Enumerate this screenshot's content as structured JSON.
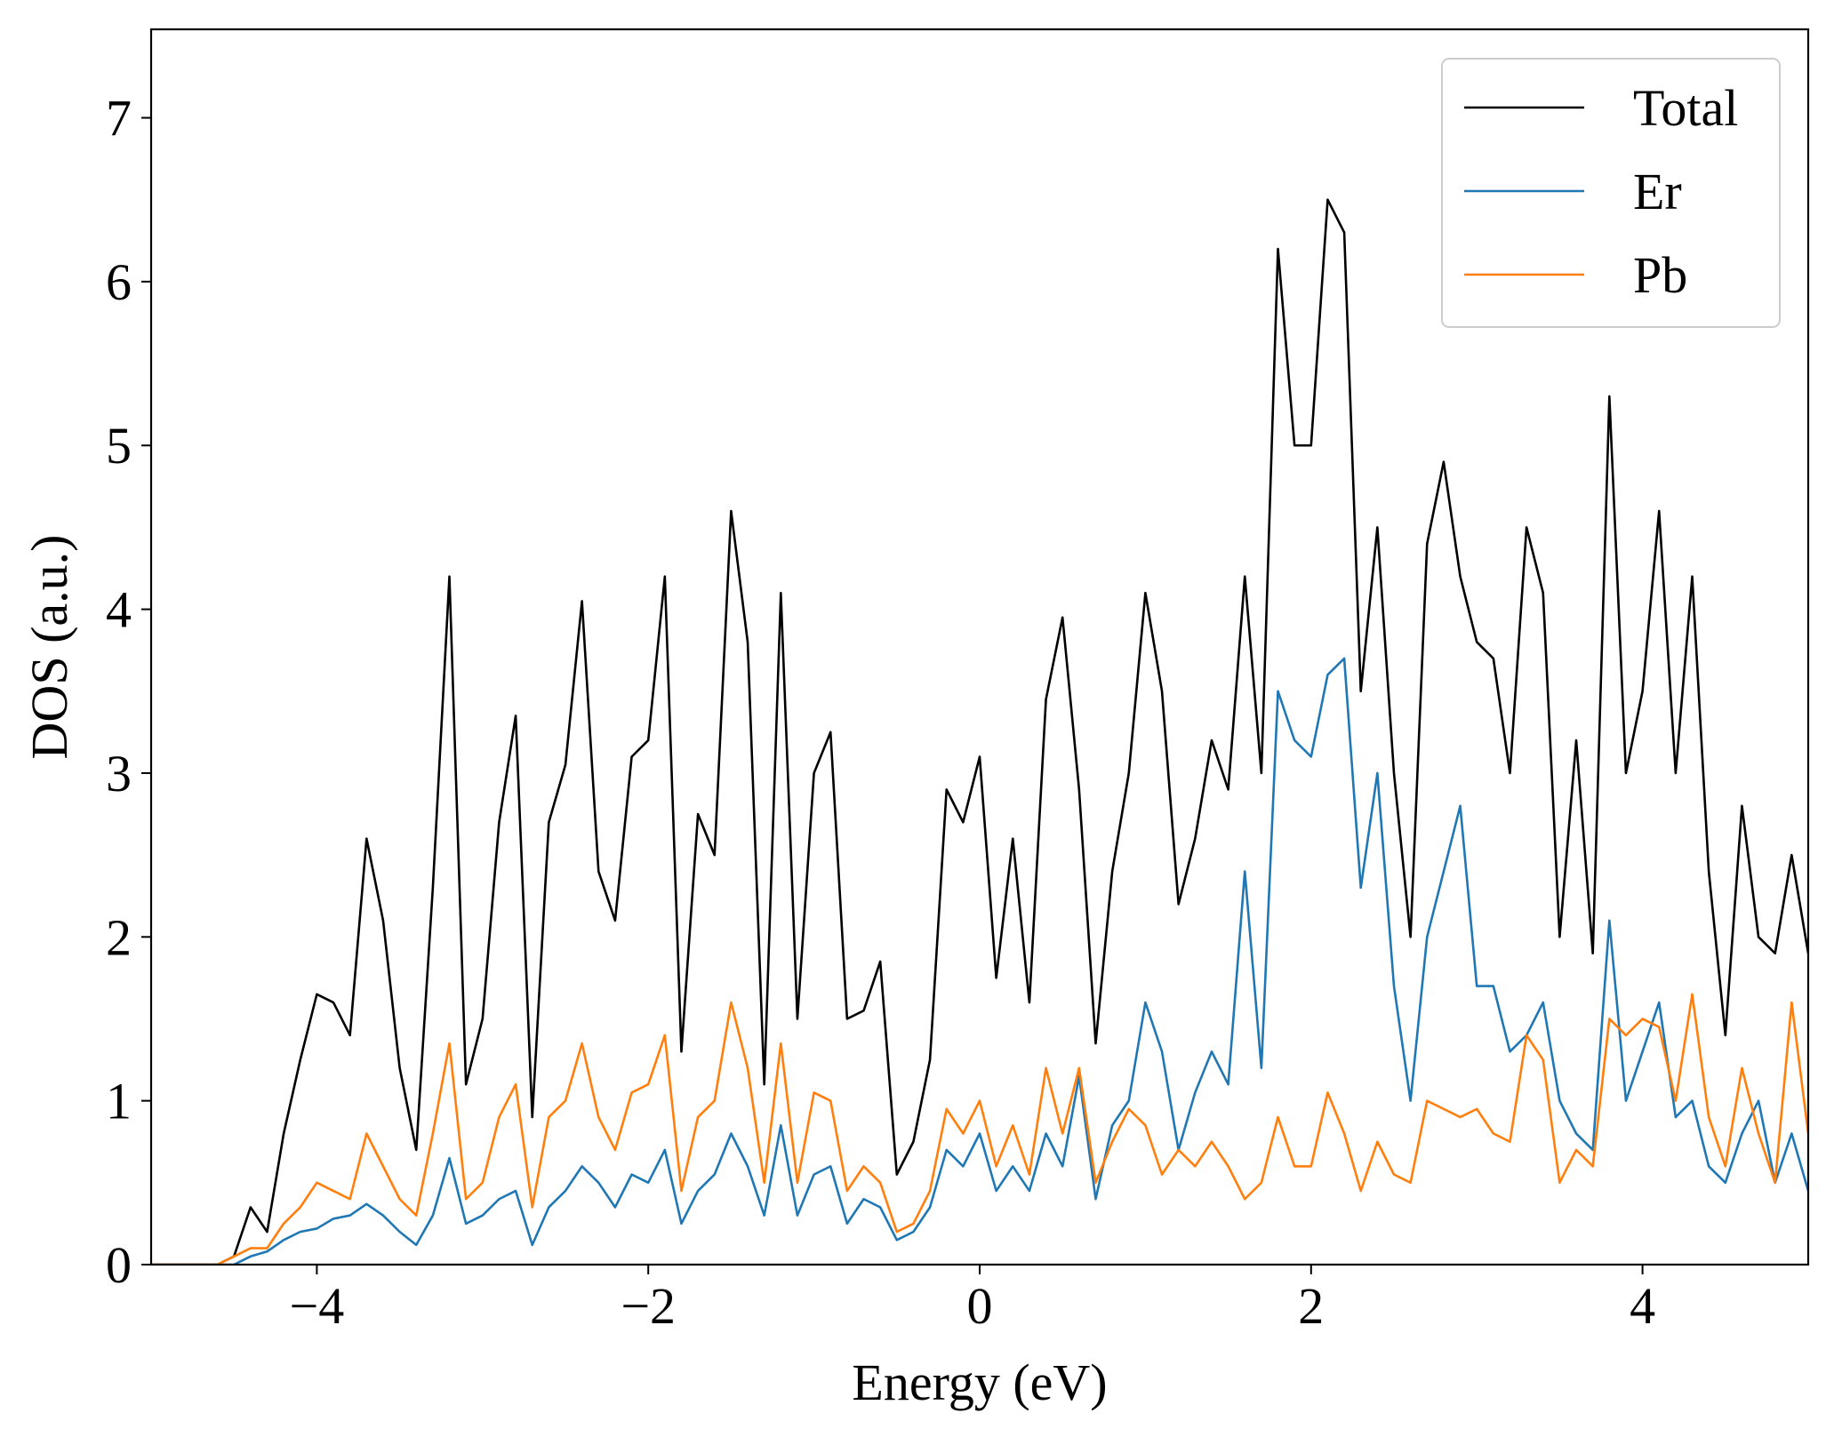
{
  "chart_data": {
    "type": "line",
    "xlabel": "Energy (eV)",
    "ylabel": "DOS (a.u.)",
    "x": [
      -5.0,
      -4.9,
      -4.8,
      -4.7,
      -4.6,
      -4.5,
      -4.4,
      -4.3,
      -4.2,
      -4.1,
      -4.0,
      -3.9,
      -3.8,
      -3.7,
      -3.6,
      -3.5,
      -3.4,
      -3.3,
      -3.2,
      -3.1,
      -3.0,
      -2.9,
      -2.8,
      -2.7,
      -2.6,
      -2.5,
      -2.4,
      -2.3,
      -2.2,
      -2.1,
      -2.0,
      -1.9,
      -1.8,
      -1.7,
      -1.6,
      -1.5,
      -1.4,
      -1.3,
      -1.2,
      -1.1,
      -1.0,
      -0.9,
      -0.8,
      -0.7,
      -0.6,
      -0.5,
      -0.4,
      -0.3,
      -0.2,
      -0.1,
      0.0,
      0.1,
      0.2,
      0.3,
      0.4,
      0.5,
      0.6,
      0.7,
      0.8,
      0.9,
      1.0,
      1.1,
      1.2,
      1.3,
      1.4,
      1.5,
      1.6,
      1.7,
      1.8,
      1.9,
      2.0,
      2.1,
      2.2,
      2.3,
      2.4,
      2.5,
      2.6,
      2.7,
      2.8,
      2.9,
      3.0,
      3.1,
      3.2,
      3.3,
      3.4,
      3.5,
      3.6,
      3.7,
      3.8,
      3.9,
      4.0,
      4.1,
      4.2,
      4.3,
      4.4,
      4.5,
      4.6,
      4.7,
      4.8,
      4.9,
      5.0
    ],
    "series": [
      {
        "name": "Total",
        "color": "#000000",
        "values": [
          0,
          0,
          0,
          0,
          0,
          0.05,
          0.35,
          0.2,
          0.8,
          1.25,
          1.65,
          1.6,
          1.4,
          2.6,
          2.1,
          1.2,
          0.7,
          2.3,
          4.2,
          1.1,
          1.5,
          2.7,
          3.35,
          0.9,
          2.7,
          3.05,
          4.05,
          2.4,
          2.1,
          3.1,
          3.2,
          4.2,
          1.3,
          2.75,
          2.5,
          4.6,
          3.8,
          1.1,
          4.1,
          1.5,
          3.0,
          3.25,
          1.5,
          1.55,
          1.85,
          0.55,
          0.75,
          1.25,
          2.9,
          2.7,
          3.1,
          1.75,
          2.6,
          1.6,
          3.45,
          3.95,
          2.9,
          1.35,
          2.4,
          3.0,
          4.1,
          3.5,
          2.2,
          2.6,
          3.2,
          2.9,
          4.2,
          3.0,
          6.2,
          5.0,
          5.0,
          6.5,
          6.3,
          3.5,
          4.5,
          3.0,
          2.0,
          4.4,
          4.9,
          4.2,
          3.8,
          3.7,
          3.0,
          4.5,
          4.1,
          2.0,
          3.2,
          1.9,
          5.3,
          3.0,
          3.5,
          4.6,
          3.0,
          4.2,
          2.4,
          1.4,
          2.8,
          2.0,
          1.9,
          2.5,
          1.9
        ]
      },
      {
        "name": "Er",
        "color": "#1f77b4",
        "values": [
          0,
          0,
          0,
          0,
          0,
          0,
          0.05,
          0.08,
          0.15,
          0.2,
          0.22,
          0.28,
          0.3,
          0.37,
          0.3,
          0.2,
          0.12,
          0.3,
          0.65,
          0.25,
          0.3,
          0.4,
          0.45,
          0.12,
          0.35,
          0.45,
          0.6,
          0.5,
          0.35,
          0.55,
          0.5,
          0.7,
          0.25,
          0.45,
          0.55,
          0.8,
          0.6,
          0.3,
          0.85,
          0.3,
          0.55,
          0.6,
          0.25,
          0.4,
          0.35,
          0.15,
          0.2,
          0.35,
          0.7,
          0.6,
          0.8,
          0.45,
          0.6,
          0.45,
          0.8,
          0.6,
          1.15,
          0.4,
          0.85,
          1.0,
          1.6,
          1.3,
          0.7,
          1.05,
          1.3,
          1.1,
          2.4,
          1.2,
          3.5,
          3.2,
          3.1,
          3.6,
          3.7,
          2.3,
          3.0,
          1.7,
          1.0,
          2.0,
          2.4,
          2.8,
          1.7,
          1.7,
          1.3,
          1.4,
          1.6,
          1.0,
          0.8,
          0.7,
          2.1,
          1.0,
          1.3,
          1.6,
          0.9,
          1.0,
          0.6,
          0.5,
          0.8,
          1.0,
          0.5,
          0.8,
          0.45
        ]
      },
      {
        "name": "Pb",
        "color": "#ff7f0e",
        "values": [
          0,
          0,
          0,
          0,
          0,
          0.05,
          0.1,
          0.1,
          0.25,
          0.35,
          0.5,
          0.45,
          0.4,
          0.8,
          0.6,
          0.4,
          0.3,
          0.8,
          1.35,
          0.4,
          0.5,
          0.9,
          1.1,
          0.35,
          0.9,
          1.0,
          1.35,
          0.9,
          0.7,
          1.05,
          1.1,
          1.4,
          0.45,
          0.9,
          1.0,
          1.6,
          1.2,
          0.5,
          1.35,
          0.5,
          1.05,
          1.0,
          0.45,
          0.6,
          0.5,
          0.2,
          0.25,
          0.45,
          0.95,
          0.8,
          1.0,
          0.6,
          0.85,
          0.55,
          1.2,
          0.8,
          1.2,
          0.5,
          0.75,
          0.95,
          0.85,
          0.55,
          0.7,
          0.6,
          0.75,
          0.6,
          0.4,
          0.5,
          0.9,
          0.6,
          0.6,
          1.05,
          0.8,
          0.45,
          0.75,
          0.55,
          0.5,
          1.0,
          0.95,
          0.9,
          0.95,
          0.8,
          0.75,
          1.4,
          1.25,
          0.5,
          0.7,
          0.6,
          1.5,
          1.4,
          1.5,
          1.45,
          1.0,
          1.65,
          0.9,
          0.6,
          1.2,
          0.8,
          0.5,
          1.6,
          0.8
        ]
      }
    ],
    "xlim": [
      -5,
      5
    ],
    "ylim": [
      0,
      7.54
    ],
    "xticks": [
      {
        "value": -4,
        "label": "−4"
      },
      {
        "value": -2,
        "label": "−2"
      },
      0,
      2,
      4
    ],
    "yticks": [
      0,
      1,
      2,
      3,
      4,
      5,
      6,
      7
    ],
    "legend": "upper right"
  }
}
